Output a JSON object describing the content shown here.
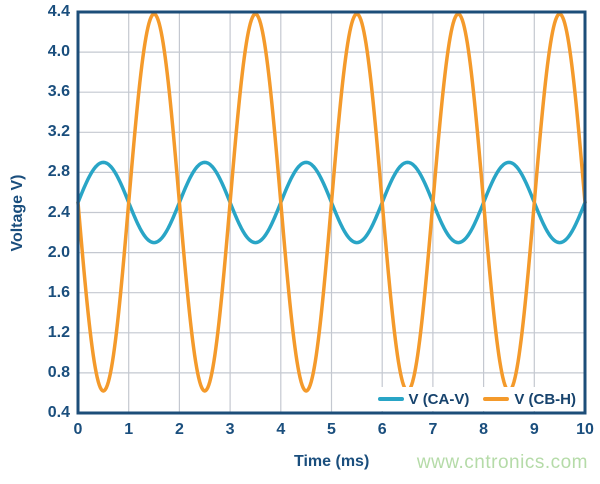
{
  "colors": {
    "axis_border": "#1d4e79",
    "tick_text": "#1a4e7d",
    "grid": "#c4c8d0",
    "legend_bg": "#ffffff",
    "watermark": "#b5dba8",
    "background": "#ffffff"
  },
  "watermark": {
    "text": "www.cntronics.com"
  },
  "chart_data": {
    "type": "line",
    "title": "",
    "xlabel": "Time (ms)",
    "ylabel": "Voltage V)",
    "xlim": [
      0,
      10
    ],
    "ylim": [
      0.4,
      4.4
    ],
    "x_ticks": [
      "0",
      "1",
      "2",
      "3",
      "4",
      "5",
      "6",
      "7",
      "8",
      "9",
      "10"
    ],
    "y_ticks": [
      "0.4",
      "0.8",
      "1.2",
      "1.6",
      "2.0",
      "2.4",
      "2.8",
      "3.2",
      "3.6",
      "4.0",
      "4.4"
    ],
    "grid": true,
    "legend_position": "inside-bottom-right",
    "series": [
      {
        "name": "V (CA-V)",
        "color": "#29a5c6",
        "waveform": "sine",
        "mean_v": 2.5,
        "amplitude_v": 0.4,
        "period_ms": 2,
        "phase_deg": 0,
        "peak_v": 2.9,
        "trough_v": 2.1,
        "peak_times_ms": [
          0.5,
          2.5,
          4.5,
          6.5,
          8.5
        ]
      },
      {
        "name": "V (CB-H)",
        "color": "#f49a2b",
        "waveform": "sine",
        "mean_v": 2.5,
        "amplitude_v": 1.88,
        "period_ms": 2,
        "phase_deg": 180,
        "peak_v": 4.38,
        "trough_v": 0.62,
        "peak_times_ms": [
          1.5,
          3.5,
          5.5,
          7.5,
          9.5
        ]
      }
    ]
  }
}
